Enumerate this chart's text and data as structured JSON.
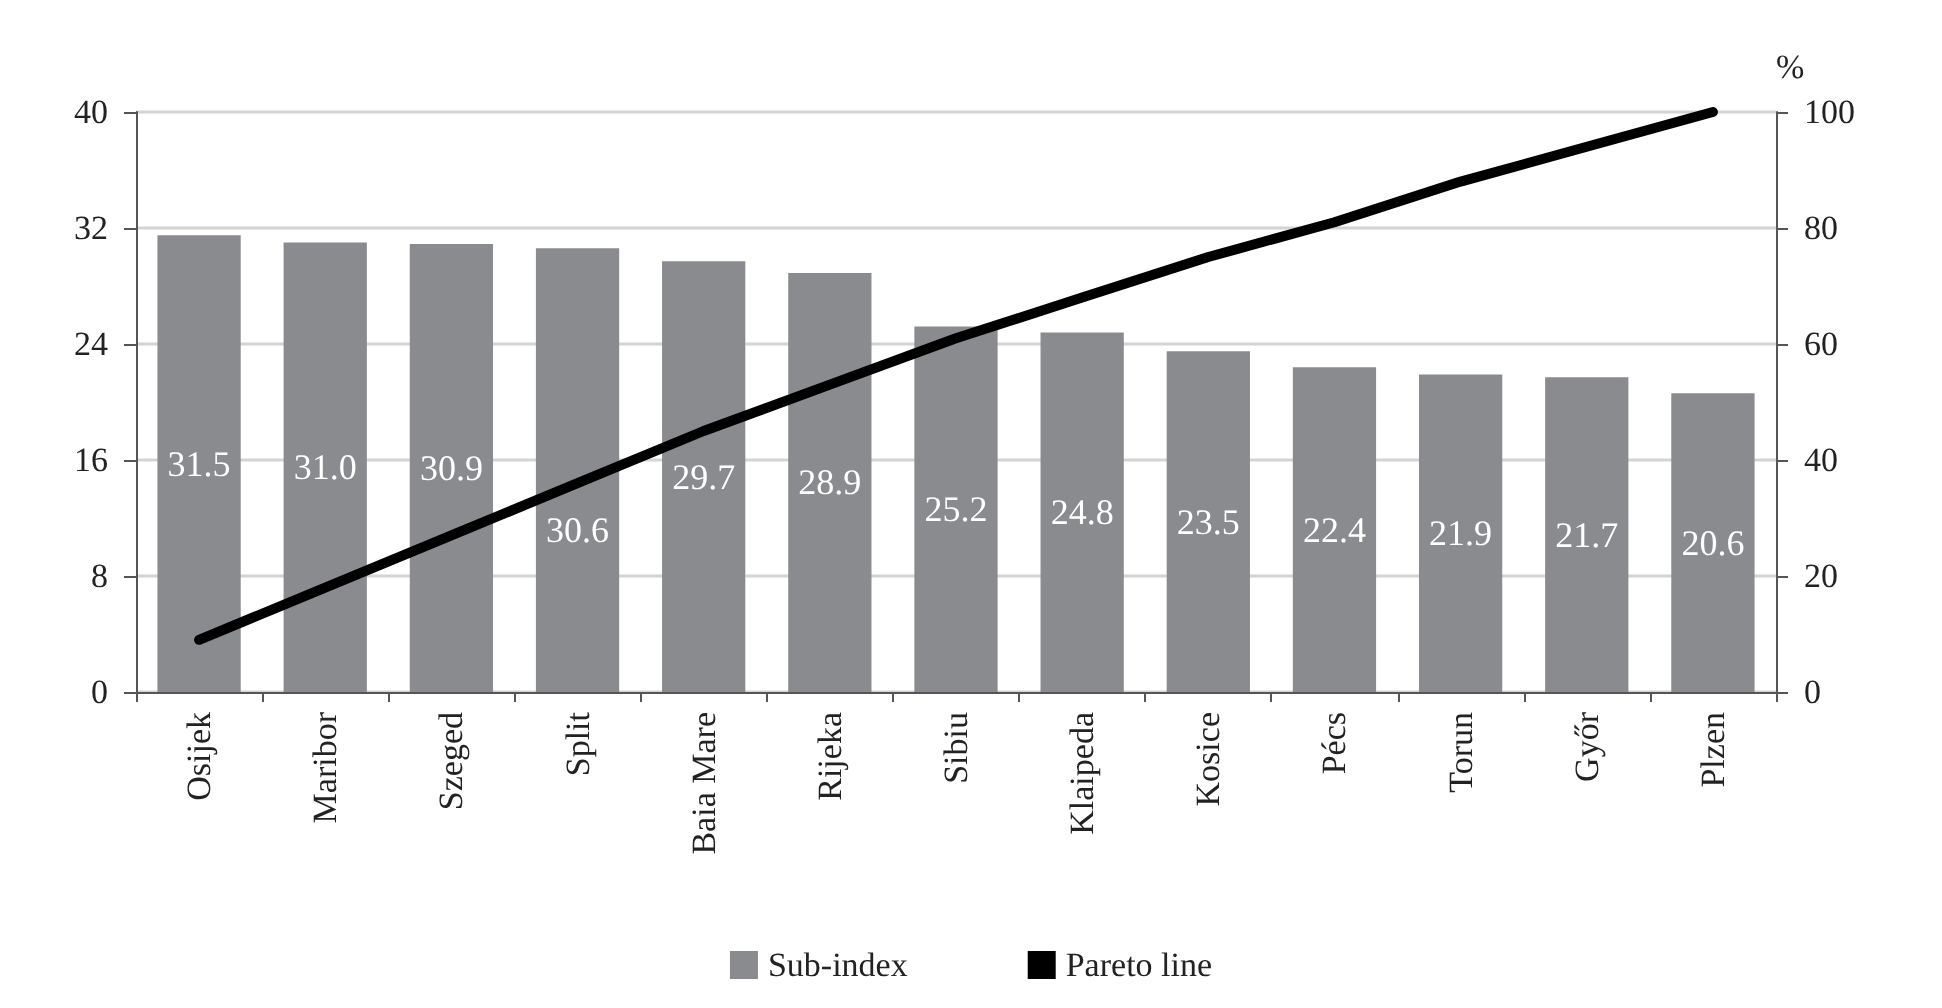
{
  "chart_data": {
    "type": "bar",
    "categories": [
      "Osijek",
      "Maribor",
      "Szeged",
      "Split",
      "Baia Mare",
      "Rijeka",
      "Sibiu",
      "Klaipeda",
      "Kosice",
      "Pécs",
      "Torun",
      "Győr",
      "Plzen"
    ],
    "series": [
      {
        "name": "Sub-index",
        "color": "#898b8e",
        "values": [
          31.5,
          31.0,
          30.9,
          30.6,
          29.7,
          28.9,
          25.2,
          24.8,
          23.5,
          22.4,
          21.9,
          21.7,
          20.6
        ],
        "value_labels": [
          "31.5",
          "31.0",
          "30.9",
          "30.6",
          "29.7",
          "28.9",
          "25.2",
          "24.8",
          "23.5",
          "22.4",
          "21.9",
          "21.7",
          "20.6"
        ]
      },
      {
        "name": "Pareto line",
        "type": "line",
        "axis": "y2",
        "color": "#000000",
        "values": [
          9,
          18,
          27,
          36,
          45,
          53,
          61,
          68,
          75,
          81,
          88,
          94,
          100
        ]
      }
    ],
    "y2label": "%",
    "ylim": [
      0,
      40
    ],
    "yticks": [
      0,
      8,
      16,
      24,
      32,
      40
    ],
    "y2lim": [
      0,
      100
    ],
    "y2ticks": [
      0,
      20,
      40,
      60,
      80,
      100
    ],
    "grid": "y",
    "legend": "bottom",
    "marker": "none",
    "line_style": "solid"
  }
}
